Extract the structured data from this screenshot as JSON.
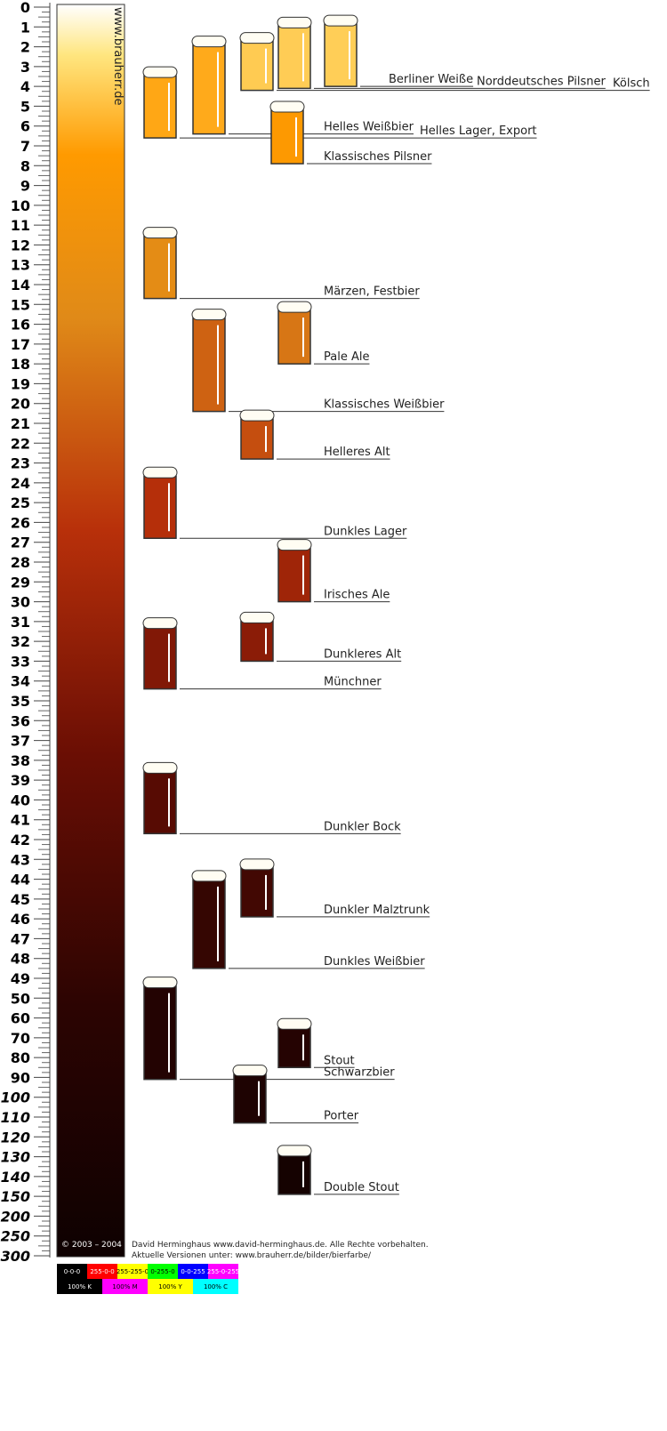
{
  "scale": {
    "watermark": "www.brauherr.de",
    "ticks": [
      0,
      1,
      2,
      3,
      4,
      5,
      6,
      7,
      8,
      9,
      10,
      11,
      12,
      13,
      14,
      15,
      16,
      17,
      18,
      19,
      20,
      21,
      22,
      23,
      24,
      25,
      26,
      27,
      28,
      29,
      30,
      31,
      32,
      33,
      34,
      35,
      36,
      37,
      38,
      39,
      40,
      41,
      42,
      43,
      44,
      45,
      46,
      47,
      48,
      49,
      50,
      60,
      70,
      80,
      90,
      100,
      110,
      120,
      130,
      140,
      150,
      200,
      250,
      300
    ]
  },
  "beers": [
    {
      "name": "Berliner Weiße",
      "value": 4
    },
    {
      "name": "Norddeutsches Pilsner",
      "value": 4.1
    },
    {
      "name": "Kölsch",
      "value": 4.2
    },
    {
      "name": "Helles Weißbier",
      "value": 6.4
    },
    {
      "name": "Helles Lager, Export",
      "value": 6.6
    },
    {
      "name": "Klassisches Pilsner",
      "value": 7.9
    },
    {
      "name": "Märzen, Festbier",
      "value": 14.7
    },
    {
      "name": "Pale Ale",
      "value": 18
    },
    {
      "name": "Klassisches Weißbier",
      "value": 20.4
    },
    {
      "name": "Helleres Alt",
      "value": 22.8
    },
    {
      "name": "Dunkles Lager",
      "value": 26.8
    },
    {
      "name": "Irisches Ale",
      "value": 30
    },
    {
      "name": "Dunkleres Alt",
      "value": 33
    },
    {
      "name": "Münchner",
      "value": 34.4
    },
    {
      "name": "Dunkler Bock",
      "value": 41.7
    },
    {
      "name": "Dunkler Malztrunk",
      "value": 45.9
    },
    {
      "name": "Dunkles Weißbier",
      "value": 48.5
    },
    {
      "name": "Stout",
      "value": 85
    },
    {
      "name": "Schwarzbier",
      "value": 91
    },
    {
      "name": "Porter",
      "value": 113
    },
    {
      "name": "Double Stout",
      "value": 149
    }
  ],
  "footer": {
    "copyright": "© 2003 – 2004",
    "credit": "David Herminghaus www.david-herminghaus.de. Alle Rechte vorbehalten.",
    "versions": "Aktuelle Versionen unter: www.brauherr.de/bilder/bierfarbe/",
    "rgb": [
      "0-0-0",
      "255-0-0",
      "255-255-0",
      "0-255-0",
      "0-0-255",
      "255-0-255"
    ],
    "cmyk": [
      "100% K",
      "100% M",
      "100% Y",
      "100% C"
    ]
  }
}
